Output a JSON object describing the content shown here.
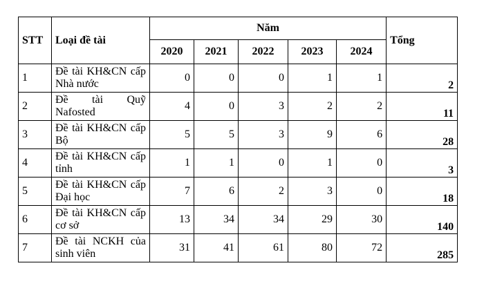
{
  "table": {
    "headers": {
      "stt": "STT",
      "type": "Loại đề tài",
      "year_group": "Năm",
      "total": "Tổng",
      "years": [
        "2020",
        "2021",
        "2022",
        "2023",
        "2024"
      ]
    },
    "rows": [
      {
        "stt": "1",
        "type": "Đề tài KH&CN cấp Nhà nước",
        "values": [
          "0",
          "0",
          "0",
          "1",
          "1"
        ],
        "total": "2"
      },
      {
        "stt": "2",
        "type": "Đề tài Quỹ Nafosted",
        "values": [
          "4",
          "0",
          "3",
          "2",
          "2"
        ],
        "total": "11"
      },
      {
        "stt": "3",
        "type": "Đề tài KH&CN cấp Bộ",
        "values": [
          "5",
          "5",
          "3",
          "9",
          "6"
        ],
        "total": "28"
      },
      {
        "stt": "4",
        "type": "Đề tài KH&CN cấp tỉnh",
        "values": [
          "1",
          "1",
          "0",
          "1",
          "0"
        ],
        "total": "3"
      },
      {
        "stt": "5",
        "type": "Đề tài KH&CN cấp Đại học",
        "values": [
          "7",
          "6",
          "2",
          "3",
          "0"
        ],
        "total": "18"
      },
      {
        "stt": "6",
        "type": "Đề tài KH&CN cấp cơ sở",
        "values": [
          "13",
          "34",
          "34",
          "29",
          "30"
        ],
        "total": "140"
      },
      {
        "stt": "7",
        "type": "Đề tài NCKH của sinh viên",
        "values": [
          "31",
          "41",
          "61",
          "80",
          "72"
        ],
        "total": "285"
      }
    ]
  }
}
